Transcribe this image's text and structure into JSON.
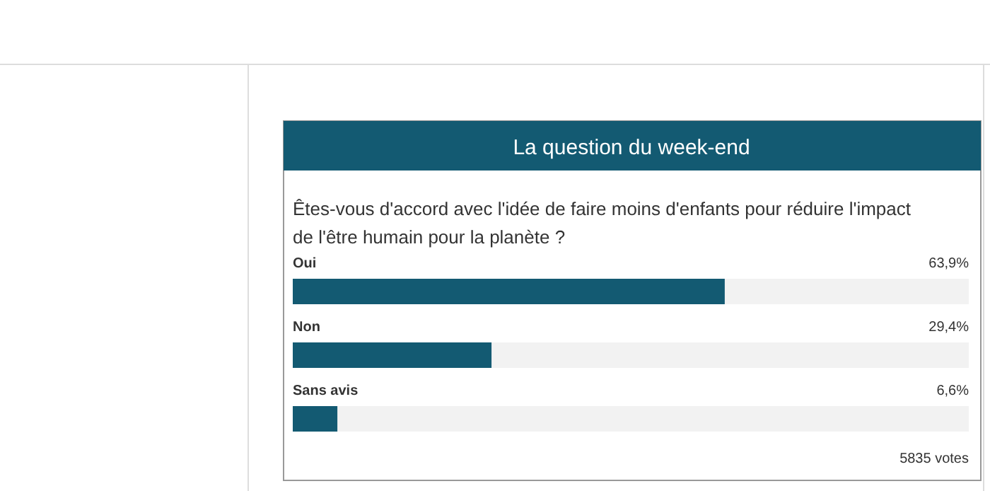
{
  "chart_data": {
    "type": "bar",
    "orientation": "horizontal",
    "title": "La question du week-end",
    "subtitle": "Êtes-vous d'accord avec l'idée de faire moins d'enfants pour réduire l'impact de l'être humain pour la planète ?",
    "categories": [
      "Oui",
      "Non",
      "Sans avis"
    ],
    "values": [
      63.9,
      29.4,
      6.6
    ],
    "value_labels": [
      "63,9%",
      "29,4%",
      "6,6%"
    ],
    "color": "#135a72",
    "xlim": [
      0,
      100
    ],
    "tick_labels": false,
    "annotations": [
      "5835 votes"
    ]
  }
}
